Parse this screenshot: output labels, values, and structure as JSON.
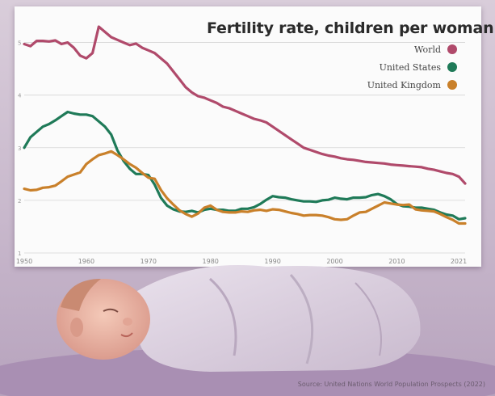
{
  "colors": {
    "world": "#b04a6b",
    "united_states": "#1f7a58",
    "united_kingdom": "#c9802a",
    "grid": "#d6d6d6"
  },
  "source": "Source: United Nations World Population Prospects (2022)",
  "chart_data": {
    "type": "line",
    "title": "Fertility rate, children per woman",
    "xlabel": "",
    "ylabel": "",
    "xlim": [
      1950,
      2021
    ],
    "ylim": [
      1,
      5.5
    ],
    "x_ticks": [
      1950,
      1960,
      1970,
      1980,
      1990,
      2000,
      2010,
      2021
    ],
    "y_ticks": [
      1,
      2,
      3,
      4,
      5
    ],
    "grid": true,
    "legend_position": "top-right",
    "series": [
      {
        "name": "World",
        "color_key": "world",
        "x": [
          1950,
          1951,
          1952,
          1953,
          1954,
          1955,
          1956,
          1957,
          1958,
          1959,
          1960,
          1961,
          1962,
          1963,
          1964,
          1965,
          1966,
          1967,
          1968,
          1969,
          1970,
          1971,
          1972,
          1973,
          1974,
          1975,
          1976,
          1977,
          1978,
          1979,
          1980,
          1981,
          1982,
          1983,
          1984,
          1985,
          1986,
          1987,
          1988,
          1989,
          1990,
          1991,
          1992,
          1993,
          1994,
          1995,
          1996,
          1997,
          1998,
          1999,
          2000,
          2001,
          2002,
          2003,
          2004,
          2005,
          2006,
          2007,
          2008,
          2009,
          2010,
          2011,
          2012,
          2013,
          2014,
          2015,
          2016,
          2017,
          2018,
          2019,
          2020,
          2021
        ],
        "y": [
          4.97,
          4.93,
          5.03,
          5.03,
          5.02,
          5.04,
          4.97,
          5.0,
          4.9,
          4.75,
          4.7,
          4.8,
          5.3,
          5.2,
          5.1,
          5.05,
          5.0,
          4.95,
          4.98,
          4.9,
          4.85,
          4.8,
          4.7,
          4.6,
          4.45,
          4.3,
          4.15,
          4.05,
          3.98,
          3.95,
          3.9,
          3.85,
          3.78,
          3.75,
          3.7,
          3.65,
          3.6,
          3.55,
          3.52,
          3.48,
          3.4,
          3.32,
          3.24,
          3.16,
          3.08,
          3.0,
          2.96,
          2.92,
          2.88,
          2.85,
          2.83,
          2.8,
          2.78,
          2.77,
          2.75,
          2.73,
          2.72,
          2.71,
          2.7,
          2.68,
          2.67,
          2.66,
          2.65,
          2.64,
          2.63,
          2.6,
          2.58,
          2.55,
          2.52,
          2.5,
          2.45,
          2.32
        ]
      },
      {
        "name": "United States",
        "color_key": "united_states",
        "x": [
          1950,
          1951,
          1952,
          1953,
          1954,
          1955,
          1956,
          1957,
          1958,
          1959,
          1960,
          1961,
          1962,
          1963,
          1964,
          1965,
          1966,
          1967,
          1968,
          1969,
          1970,
          1971,
          1972,
          1973,
          1974,
          1975,
          1976,
          1977,
          1978,
          1979,
          1980,
          1981,
          1982,
          1983,
          1984,
          1985,
          1986,
          1987,
          1988,
          1989,
          1990,
          1991,
          1992,
          1993,
          1994,
          1995,
          1996,
          1997,
          1998,
          1999,
          2000,
          2001,
          2002,
          2003,
          2004,
          2005,
          2006,
          2007,
          2008,
          2009,
          2010,
          2011,
          2012,
          2013,
          2014,
          2015,
          2016,
          2017,
          2018,
          2019,
          2020,
          2021
        ],
        "y": [
          3.0,
          3.2,
          3.3,
          3.4,
          3.45,
          3.52,
          3.6,
          3.68,
          3.65,
          3.63,
          3.63,
          3.6,
          3.5,
          3.4,
          3.25,
          2.95,
          2.75,
          2.6,
          2.5,
          2.5,
          2.48,
          2.3,
          2.05,
          1.9,
          1.83,
          1.79,
          1.78,
          1.8,
          1.77,
          1.82,
          1.84,
          1.82,
          1.82,
          1.8,
          1.8,
          1.84,
          1.84,
          1.87,
          1.93,
          2.01,
          2.08,
          2.06,
          2.05,
          2.02,
          2.0,
          1.98,
          1.98,
          1.97,
          2.0,
          2.01,
          2.05,
          2.03,
          2.02,
          2.05,
          2.05,
          2.06,
          2.1,
          2.12,
          2.08,
          2.02,
          1.93,
          1.89,
          1.88,
          1.86,
          1.86,
          1.84,
          1.82,
          1.77,
          1.73,
          1.71,
          1.64,
          1.66
        ]
      },
      {
        "name": "United Kingdom",
        "color_key": "united_kingdom",
        "x": [
          1950,
          1951,
          1952,
          1953,
          1954,
          1955,
          1956,
          1957,
          1958,
          1959,
          1960,
          1961,
          1962,
          1963,
          1964,
          1965,
          1966,
          1967,
          1968,
          1969,
          1970,
          1971,
          1972,
          1973,
          1974,
          1975,
          1976,
          1977,
          1978,
          1979,
          1980,
          1981,
          1982,
          1983,
          1984,
          1985,
          1986,
          1987,
          1988,
          1989,
          1990,
          1991,
          1992,
          1993,
          1994,
          1995,
          1996,
          1997,
          1998,
          1999,
          2000,
          2001,
          2002,
          2003,
          2004,
          2005,
          2006,
          2007,
          2008,
          2009,
          2010,
          2011,
          2012,
          2013,
          2014,
          2015,
          2016,
          2017,
          2018,
          2019,
          2020,
          2021
        ],
        "y": [
          2.22,
          2.19,
          2.2,
          2.24,
          2.25,
          2.28,
          2.36,
          2.45,
          2.49,
          2.53,
          2.69,
          2.78,
          2.86,
          2.89,
          2.93,
          2.86,
          2.78,
          2.69,
          2.62,
          2.52,
          2.43,
          2.41,
          2.2,
          2.04,
          1.92,
          1.81,
          1.74,
          1.69,
          1.75,
          1.86,
          1.9,
          1.82,
          1.78,
          1.77,
          1.77,
          1.79,
          1.78,
          1.81,
          1.82,
          1.8,
          1.83,
          1.82,
          1.79,
          1.76,
          1.74,
          1.71,
          1.72,
          1.72,
          1.71,
          1.68,
          1.64,
          1.63,
          1.64,
          1.71,
          1.77,
          1.78,
          1.84,
          1.9,
          1.96,
          1.94,
          1.92,
          1.91,
          1.92,
          1.83,
          1.81,
          1.8,
          1.79,
          1.74,
          1.68,
          1.63,
          1.56,
          1.56
        ]
      }
    ]
  }
}
